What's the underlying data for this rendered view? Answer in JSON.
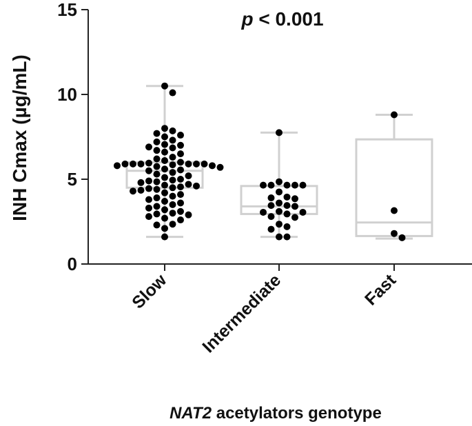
{
  "chart_data": {
    "type": "box",
    "title": "",
    "annotation": {
      "italic": "p",
      "text": " < 0.001"
    },
    "xlabel_italic": "NAT2",
    "xlabel_rest": " acetylators genotype",
    "ylabel": "INH Cmax (µg/mL)",
    "ylim": [
      0,
      15
    ],
    "yticks": [
      0,
      5,
      10,
      15
    ],
    "categories": [
      "Slow",
      "Intermediate",
      "Fast"
    ],
    "grid": false,
    "box_color": "#d0d0d0",
    "point_color": "#000000",
    "series": [
      {
        "name": "Slow",
        "whisker_low": 1.6,
        "q1": 4.5,
        "median": 5.5,
        "q3": 6.0,
        "whisker_high": 10.5,
        "points": [
          10.5,
          10.1,
          8.0,
          7.85,
          7.7,
          7.6,
          7.5,
          7.3,
          7.2,
          7.05,
          7.0,
          6.9,
          6.85,
          6.7,
          6.6,
          6.5,
          6.3,
          6.2,
          6.1,
          6.0,
          5.95,
          5.9,
          5.9,
          5.9,
          5.9,
          5.9,
          5.9,
          5.85,
          5.8,
          5.8,
          5.75,
          5.7,
          5.6,
          5.55,
          5.5,
          5.4,
          5.3,
          5.2,
          5.1,
          5.0,
          4.95,
          4.9,
          4.85,
          4.8,
          4.7,
          4.65,
          4.6,
          4.55,
          4.5,
          4.45,
          4.4,
          4.35,
          4.3,
          4.2,
          4.1,
          4.0,
          3.9,
          3.8,
          3.7,
          3.6,
          3.5,
          3.4,
          3.3,
          3.2,
          3.1,
          3.0,
          2.95,
          2.9,
          2.8,
          2.7,
          2.6,
          2.35,
          2.3,
          2.1,
          1.6
        ]
      },
      {
        "name": "Intermediate",
        "whisker_low": 1.6,
        "q1": 2.95,
        "median": 3.4,
        "q3": 4.6,
        "whisker_high": 7.75,
        "points": [
          7.75,
          4.85,
          4.65,
          4.65,
          4.65,
          4.65,
          4.65,
          4.25,
          3.95,
          3.9,
          3.85,
          3.6,
          3.45,
          3.45,
          3.4,
          3.1,
          3.05,
          3.05,
          2.95,
          2.8,
          2.75,
          2.35,
          2.2,
          2.05,
          1.6,
          1.6
        ]
      },
      {
        "name": "Fast",
        "whisker_low": 1.5,
        "q1": 1.65,
        "median": 2.45,
        "q3": 7.35,
        "whisker_high": 8.8,
        "points": [
          8.8,
          3.15,
          1.8,
          1.55
        ]
      }
    ]
  }
}
